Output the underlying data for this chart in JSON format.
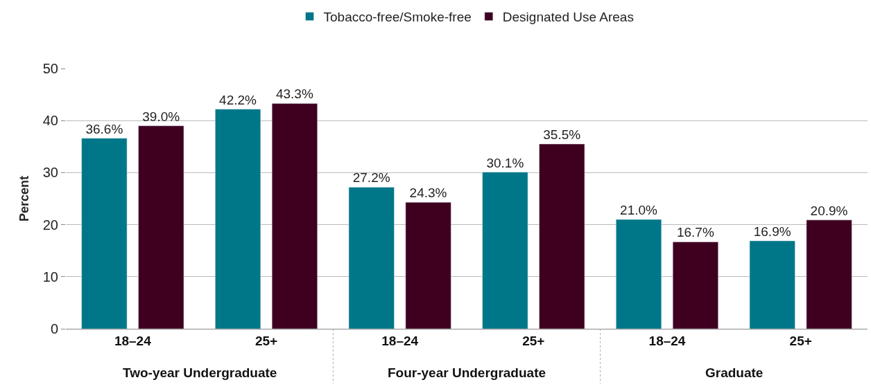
{
  "chart_data": {
    "type": "bar",
    "ylabel": "Percent",
    "categories": [
      "18–24",
      "25+",
      "18–24",
      "25+",
      "18–24",
      "25+"
    ],
    "annotations": [
      "Two-year Undergraduate",
      "Four-year Undergraduate",
      "Graduate"
    ],
    "series": [
      {
        "name": "Tobacco-free/Smoke-free",
        "color": "#007788",
        "values": [
          36.6,
          42.2,
          27.2,
          30.1,
          21.0,
          16.9
        ],
        "value_labels": [
          "36.6%",
          "42.2%",
          "27.2%",
          "30.1%",
          "21.0%",
          "16.9%"
        ]
      },
      {
        "name": "Designated Use Areas",
        "color": "#3f0020",
        "values": [
          39.0,
          43.3,
          24.3,
          35.5,
          16.7,
          20.9
        ],
        "value_labels": [
          "39.0%",
          "43.3%",
          "24.3%",
          "35.5%",
          "16.7%",
          "20.9%"
        ]
      }
    ],
    "ylim": [
      0,
      50
    ],
    "yticks": [
      0,
      10,
      20,
      30,
      40,
      50
    ],
    "grid": "y",
    "legend": "top"
  }
}
